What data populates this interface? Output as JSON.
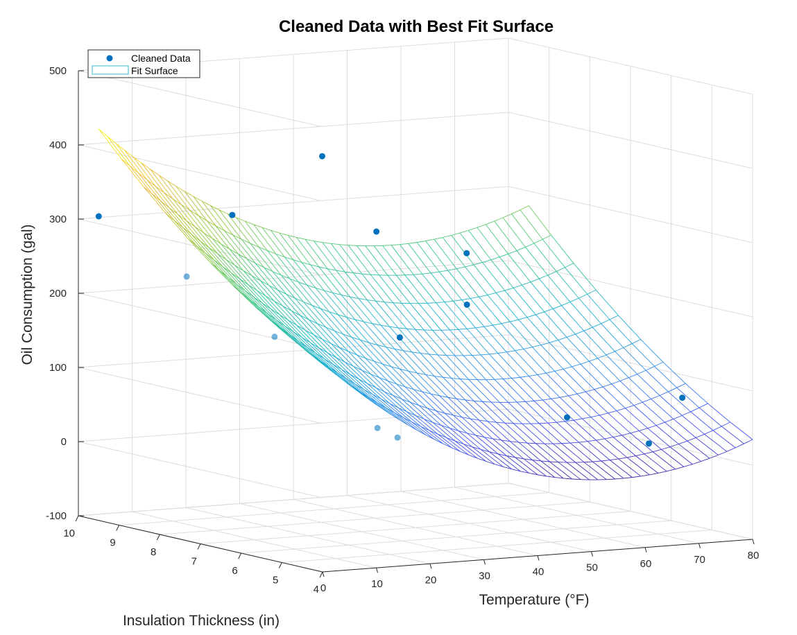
{
  "chart_data": {
    "type": "scatter3d_surface",
    "title": "Cleaned Data with Best Fit Surface",
    "xlabel": "Temperature (°F)",
    "ylabel": "Insulation Thickness (in)",
    "zlabel": "Oil Consumption (gal)",
    "x_ticks": [
      "0",
      "10",
      "20",
      "30",
      "40",
      "50",
      "60",
      "70",
      "80"
    ],
    "y_ticks": [
      "4",
      "5",
      "6",
      "7",
      "8",
      "9",
      "10"
    ],
    "z_ticks": [
      "-100",
      "0",
      "100",
      "200",
      "300",
      "400",
      "500"
    ],
    "xlim": [
      0,
      80
    ],
    "ylim": [
      4,
      10
    ],
    "zlim": [
      -100,
      500
    ],
    "grid": true,
    "legend": {
      "position": "top-left",
      "entries": [
        "Cleaned Data",
        "Fit Surface"
      ]
    },
    "colors": {
      "points": "#0072BD",
      "colormap": "parula"
    },
    "series": [
      {
        "name": "Cleaned Data",
        "type": "scatter",
        "points": [
          {
            "x": 0,
            "y": 9.5,
            "z": 310
          },
          {
            "x": 5,
            "y": 8.0,
            "z": 245
          },
          {
            "x": 10,
            "y": 6.5,
            "z": 180
          },
          {
            "x": 14,
            "y": 4.5,
            "z": 80
          },
          {
            "x": 20,
            "y": 4.8,
            "z": 60
          },
          {
            "x": 15,
            "y": 8.2,
            "z": 320
          },
          {
            "x": 34,
            "y": 8.5,
            "z": 385
          },
          {
            "x": 35,
            "y": 7.3,
            "z": 298
          },
          {
            "x": 28,
            "y": 5.8,
            "z": 178
          },
          {
            "x": 48,
            "y": 6.8,
            "z": 268
          },
          {
            "x": 42,
            "y": 6.0,
            "z": 212
          },
          {
            "x": 47,
            "y": 4.2,
            "z": 80
          },
          {
            "x": 66,
            "y": 4.7,
            "z": 28
          },
          {
            "x": 76,
            "y": 5.2,
            "z": 78
          }
        ]
      },
      {
        "name": "Fit Surface",
        "type": "surface",
        "x_range": [
          0,
          80
        ],
        "y_range": [
          4,
          9.5
        ],
        "coefficients": {
          "b0": 117,
          "b1": -6.8,
          "b2": 0.062,
          "b3": 4.2,
          "b4": 3.0
        }
      }
    ]
  }
}
